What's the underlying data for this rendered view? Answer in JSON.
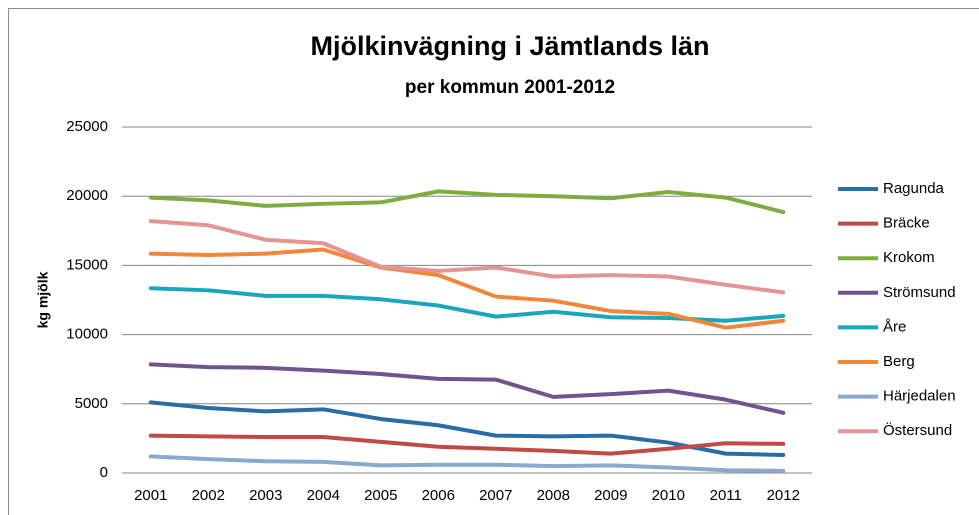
{
  "chart_data": {
    "type": "line",
    "title": "Mjölkinvägning i Jämtlands län",
    "subtitle": "per kommun 2001-2012",
    "y_label": "kg mjölk",
    "categories": [
      "2001",
      "2002",
      "2003",
      "2004",
      "2005",
      "2006",
      "2007",
      "2008",
      "2009",
      "2010",
      "2011",
      "2012"
    ],
    "ylim": [
      0,
      25000
    ],
    "yticks": [
      0,
      5000,
      10000,
      15000,
      20000,
      25000
    ],
    "grid": true,
    "legend": "right",
    "series": [
      {
        "name": "Ragunda",
        "color": "#2a6ca6",
        "values": [
          5100,
          4700,
          4450,
          4600,
          3900,
          3450,
          2700,
          2650,
          2700,
          2200,
          1400,
          1300
        ]
      },
      {
        "name": "Bräcke",
        "color": "#be4b48",
        "values": [
          2700,
          2650,
          2600,
          2600,
          2250,
          1900,
          1750,
          1600,
          1400,
          1750,
          2150,
          2100
        ]
      },
      {
        "name": "Krokom",
        "color": "#7ead3f",
        "values": [
          19900,
          19700,
          19300,
          19450,
          19550,
          20350,
          20100,
          20000,
          19850,
          20300,
          19900,
          18850
        ]
      },
      {
        "name": "Strömsund",
        "color": "#71548f",
        "values": [
          7850,
          7650,
          7600,
          7400,
          7150,
          6800,
          6750,
          5500,
          5700,
          5950,
          5300,
          4350
        ]
      },
      {
        "name": "Åre",
        "color": "#1aa6bd",
        "values": [
          13350,
          13200,
          12800,
          12800,
          12550,
          12100,
          11300,
          11650,
          11250,
          11200,
          11000,
          11350
        ]
      },
      {
        "name": "Berg",
        "color": "#f0873a",
        "values": [
          15850,
          15750,
          15850,
          16150,
          14850,
          14300,
          12750,
          12450,
          11700,
          11500,
          10500,
          11000
        ]
      },
      {
        "name": "Härjedalen",
        "color": "#8aa9d0",
        "values": [
          1200,
          1000,
          850,
          800,
          550,
          600,
          600,
          500,
          550,
          400,
          200,
          150
        ]
      },
      {
        "name": "Östersund",
        "color": "#e29592",
        "values": [
          18200,
          17900,
          16850,
          16600,
          14900,
          14600,
          14850,
          14200,
          14300,
          14200,
          13600,
          13050
        ]
      }
    ]
  }
}
